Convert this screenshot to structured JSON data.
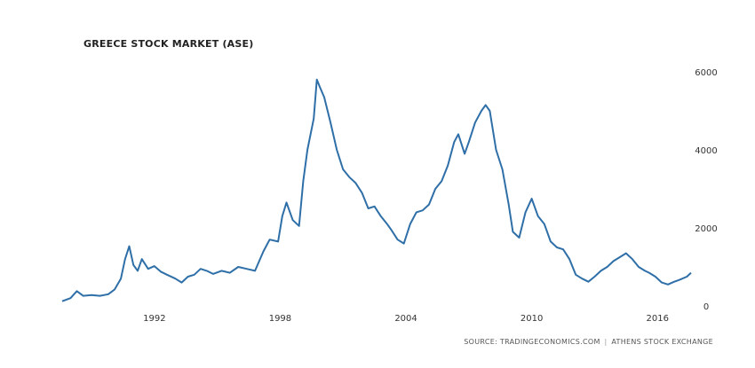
{
  "chart_data": {
    "type": "line",
    "title": "GREECE STOCK MARKET (ASE)",
    "source": "SOURCE: TRADINGECONOMICS.COM",
    "source_separator": "|",
    "source_org": "ATHENS STOCK EXCHANGE",
    "x_ticks": [
      "1992",
      "1998",
      "2004",
      "2010",
      "2016"
    ],
    "y_ticks": [
      "6000",
      "4000",
      "2000",
      "0"
    ],
    "xlim": [
      1987.6,
      2017.6
    ],
    "ylim": [
      0,
      6000
    ],
    "grid": false,
    "line_color": "#2f6fa8",
    "series": [
      {
        "x": [
          1987.6,
          1988.0,
          1988.3,
          1988.6,
          1989.0,
          1989.4,
          1989.8,
          1990.1,
          1990.4,
          1990.6,
          1990.8,
          1991.0,
          1991.2,
          1991.4,
          1991.7,
          1992.0,
          1992.3,
          1992.6,
          1993.0,
          1993.3,
          1993.6,
          1993.9,
          1994.2,
          1994.5,
          1994.8,
          1995.2,
          1995.6,
          1996.0,
          1996.4,
          1996.8,
          1997.2,
          1997.5,
          1997.9,
          1998.1,
          1998.3,
          1998.6,
          1998.9,
          1999.1,
          1999.3,
          1999.6,
          1999.75,
          1999.9,
          2000.1,
          2000.4,
          2000.7,
          2001.0,
          2001.3,
          2001.6,
          2001.9,
          2002.2,
          2002.5,
          2002.8,
          2003.1,
          2003.3,
          2003.6,
          2003.9,
          2004.2,
          2004.5,
          2004.8,
          2005.1,
          2005.4,
          2005.7,
          2006.0,
          2006.3,
          2006.5,
          2006.8,
          2007.0,
          2007.3,
          2007.6,
          2007.8,
          2008.0,
          2008.3,
          2008.6,
          2008.9,
          2009.1,
          2009.4,
          2009.7,
          2010.0,
          2010.3,
          2010.6,
          2010.9,
          2011.2,
          2011.5,
          2011.8,
          2012.1,
          2012.4,
          2012.7,
          2013.0,
          2013.3,
          2013.6,
          2013.9,
          2014.2,
          2014.5,
          2014.8,
          2015.1,
          2015.4,
          2015.6,
          2015.9,
          2016.2,
          2016.5,
          2016.8,
          2017.1,
          2017.4,
          2017.6
        ],
        "values": [
          120,
          200,
          380,
          260,
          280,
          260,
          300,
          420,
          700,
          1200,
          1530,
          1050,
          900,
          1200,
          950,
          1020,
          880,
          800,
          700,
          600,
          750,
          800,
          950,
          900,
          820,
          900,
          850,
          1000,
          950,
          900,
          1400,
          1700,
          1650,
          2300,
          2650,
          2200,
          2050,
          3200,
          4000,
          4800,
          5800,
          5600,
          5350,
          4700,
          4000,
          3500,
          3300,
          3150,
          2900,
          2500,
          2550,
          2300,
          2100,
          1950,
          1700,
          1600,
          2100,
          2400,
          2450,
          2600,
          3000,
          3200,
          3600,
          4200,
          4400,
          3900,
          4200,
          4700,
          5000,
          5150,
          5000,
          4000,
          3500,
          2600,
          1900,
          1750,
          2400,
          2750,
          2300,
          2100,
          1650,
          1500,
          1450,
          1200,
          800,
          700,
          620,
          750,
          900,
          1000,
          1150,
          1250,
          1350,
          1200,
          1000,
          900,
          850,
          750,
          600,
          550,
          620,
          680,
          750,
          850
        ]
      }
    ]
  }
}
